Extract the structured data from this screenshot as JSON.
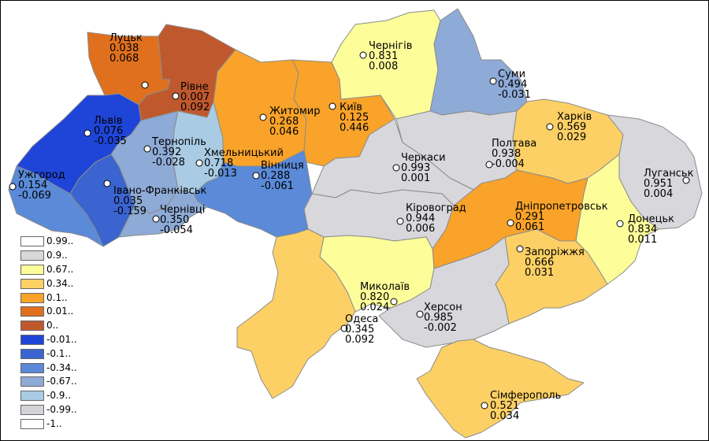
{
  "legend": [
    {
      "label": "0.99..",
      "color": "#ffffff"
    },
    {
      "label": "0.9..",
      "color": "#d7d7dc"
    },
    {
      "label": "0.67..",
      "color": "#fdfd9a"
    },
    {
      "label": "0.34..",
      "color": "#fcd065"
    },
    {
      "label": "0.1..",
      "color": "#f9a32a"
    },
    {
      "label": "0.01..",
      "color": "#e0701e"
    },
    {
      "label": "0..",
      "color": "#c0582e"
    },
    {
      "label": "-0.01..",
      "color": "#1f45d8"
    },
    {
      "label": "-0.1..",
      "color": "#3b64d0"
    },
    {
      "label": "-0.34..",
      "color": "#5a8ad8"
    },
    {
      "label": "-0.67..",
      "color": "#8eaad6"
    },
    {
      "label": "-0.9..",
      "color": "#a9cbe3"
    },
    {
      "label": "-0.99..",
      "color": "#d4d4d8"
    },
    {
      "label": "-1..",
      "color": "#ffffff"
    }
  ],
  "cities": [
    {
      "name": "Луцьк",
      "v1": "0.038",
      "v2": "0.068"
    },
    {
      "name": "Рівне",
      "v1": "0.007",
      "v2": "0.092"
    },
    {
      "name": "Житомир",
      "v1": "0.268",
      "v2": "0.046"
    },
    {
      "name": "Київ",
      "v1": "0.125",
      "v2": "0.446"
    },
    {
      "name": "Чернігів",
      "v1": "0.831",
      "v2": "0.008"
    },
    {
      "name": "Суми",
      "v1": "0.494",
      "v2": "-0.031"
    },
    {
      "name": "Львів",
      "v1": "0.076",
      "v2": "-0.035"
    },
    {
      "name": "Тернопіль",
      "v1": "0.392",
      "v2": "-0.028"
    },
    {
      "name": "Хмельницький",
      "v1": "0.718",
      "v2": "-0.013"
    },
    {
      "name": "Вінниця",
      "v1": "0.288",
      "v2": "-0.061"
    },
    {
      "name": "Ужгород",
      "v1": "0.154",
      "v2": "-0.069"
    },
    {
      "name": "Івано-Франківськ",
      "v1": "0.035",
      "v2": "-0.159"
    },
    {
      "name": "Чернівці",
      "v1": "0.350",
      "v2": "-0.054"
    },
    {
      "name": "Черкаси",
      "v1": "0.993",
      "v2": "0.001"
    },
    {
      "name": "Полтава",
      "v1": "0.938",
      "v2": "-0.004"
    },
    {
      "name": "Харків",
      "v1": "0.569",
      "v2": "0.029"
    },
    {
      "name": "Луганськ",
      "v1": "0.951",
      "v2": "0.004"
    },
    {
      "name": "Кіровоград",
      "v1": "0.944",
      "v2": "0.006"
    },
    {
      "name": "Дніпропетровськ",
      "v1": "0.291",
      "v2": "0.061"
    },
    {
      "name": "Донецьк",
      "v1": "0.834",
      "v2": "0.011"
    },
    {
      "name": "Запоріжжя",
      "v1": "0.666",
      "v2": "0.031"
    },
    {
      "name": "Миколаїв",
      "v1": "0.820",
      "v2": "0.024"
    },
    {
      "name": "Херсон",
      "v1": "0.985",
      "v2": "-0.002"
    },
    {
      "name": "Одеса",
      "v1": "0.345",
      "v2": "0.092"
    },
    {
      "name": "Сімферополь",
      "v1": "0.521",
      "v2": "0.034"
    }
  ]
}
